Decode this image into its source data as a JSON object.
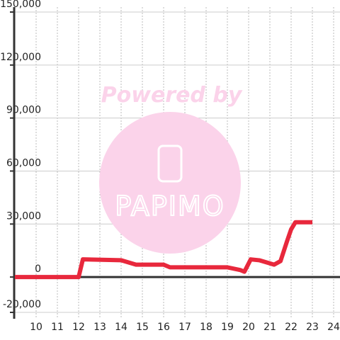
{
  "chart_data": {
    "type": "line",
    "watermark": {
      "text": "Powered by",
      "logo": "PAPIMO"
    },
    "x": [
      9,
      12,
      12.2,
      14,
      14.7,
      16,
      16.3,
      19,
      19.6,
      19.8,
      20.1,
      20.5,
      21.2,
      21.5,
      21.8,
      22,
      22.2,
      23
    ],
    "series": [
      {
        "color": "#e8283c",
        "values": [
          0,
          0,
          10000,
          9500,
          7000,
          7000,
          5500,
          5500,
          4000,
          3000,
          10000,
          9500,
          7000,
          9000,
          20000,
          27000,
          31000,
          31000
        ]
      }
    ],
    "xlim": [
      9,
      24.3
    ],
    "xticks": [
      10,
      11,
      12,
      13,
      14,
      15,
      16,
      17,
      18,
      19,
      20,
      21,
      22,
      23,
      24
    ],
    "ylim": [
      -20000,
      150000
    ],
    "yticks": [
      {
        "value": -20000,
        "label": "-20,000"
      },
      0,
      {
        "value": 30000,
        "label": "30,000"
      },
      {
        "value": 60000,
        "label": "60,000"
      },
      {
        "value": 90000,
        "label": "90,000"
      },
      {
        "value": 120000,
        "label": "120,000"
      },
      {
        "value": 150000,
        "label": "150,000"
      }
    ],
    "grid": true
  }
}
